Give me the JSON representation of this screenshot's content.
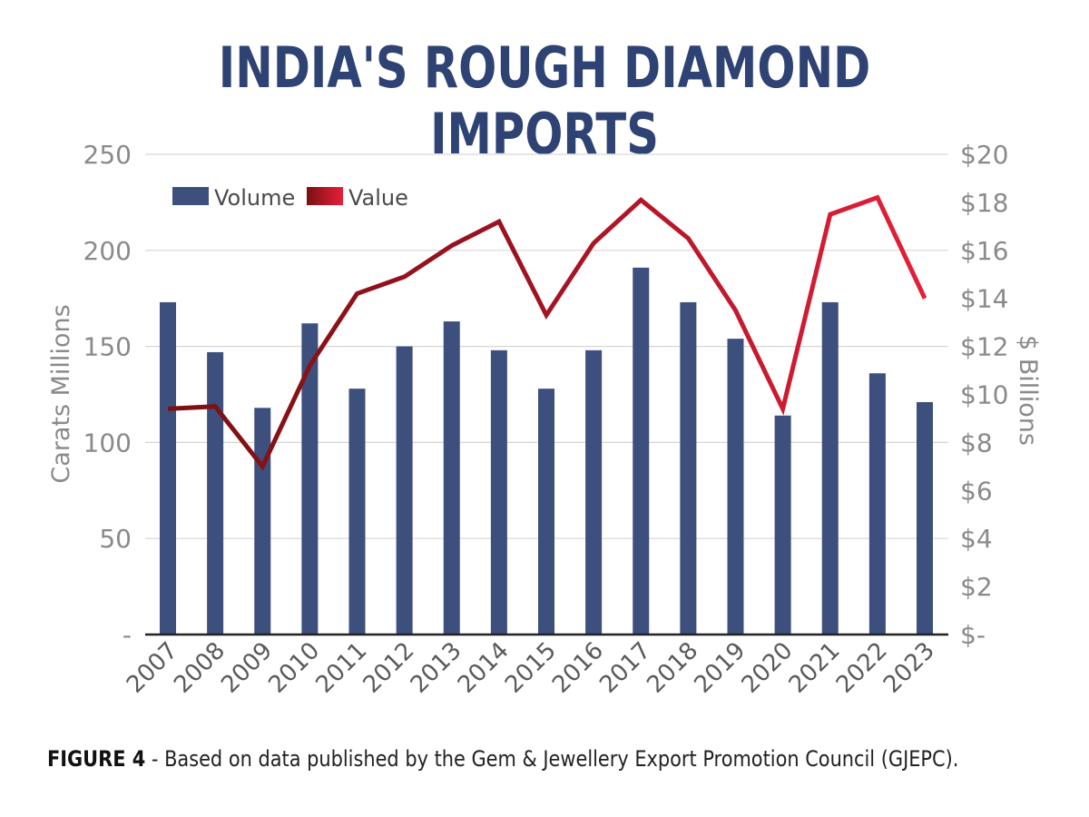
{
  "chart_data": {
    "type": "bar",
    "title": "INDIA'S ROUGH DIAMOND IMPORTS",
    "caption": {
      "label": "FIGURE 4",
      "text": " - Based on data published by the Gem & Jewellery Export Promotion Council (GJEPC)."
    },
    "categories": [
      "2007",
      "2008",
      "2009",
      "2010",
      "2011",
      "2012",
      "2013",
      "2014",
      "2015",
      "2016",
      "2017",
      "2018",
      "2019",
      "2020",
      "2021",
      "2022",
      "2023"
    ],
    "series": [
      {
        "name": "Volume",
        "type": "bar",
        "axis": "left",
        "color": "#3d4f7d",
        "values": [
          173,
          147,
          118,
          162,
          128,
          150,
          163,
          148,
          128,
          148,
          191,
          173,
          154,
          114,
          173,
          136,
          121
        ]
      },
      {
        "name": "Value",
        "type": "line",
        "axis": "right",
        "color_start": "#7a1010",
        "color_end": "#e8203a",
        "values": [
          9.4,
          9.5,
          7.0,
          11.2,
          14.2,
          14.9,
          16.2,
          17.2,
          13.3,
          16.3,
          18.1,
          16.5,
          13.5,
          9.4,
          17.5,
          18.2,
          14.0
        ]
      }
    ],
    "left_axis": {
      "label": "Carats Millions",
      "ylim": [
        0,
        250
      ],
      "ticks": [
        {
          "value": 0,
          "label": "-"
        },
        {
          "value": 50,
          "label": "50"
        },
        {
          "value": 100,
          "label": "100"
        },
        {
          "value": 150,
          "label": "150"
        },
        {
          "value": 200,
          "label": "200"
        },
        {
          "value": 250,
          "label": "250"
        }
      ]
    },
    "right_axis": {
      "label": "$ Billions",
      "ylim": [
        0,
        20
      ],
      "ticks": [
        {
          "value": 0,
          "label": "$-"
        },
        {
          "value": 2,
          "label": "$2"
        },
        {
          "value": 4,
          "label": "$4"
        },
        {
          "value": 6,
          "label": "$6"
        },
        {
          "value": 8,
          "label": "$8"
        },
        {
          "value": 10,
          "label": "$10"
        },
        {
          "value": 12,
          "label": "$12"
        },
        {
          "value": 14,
          "label": "$14"
        },
        {
          "value": 16,
          "label": "$16"
        },
        {
          "value": 18,
          "label": "$18"
        },
        {
          "value": 20,
          "label": "$20"
        }
      ]
    },
    "gridlines": [
      50,
      100,
      150,
      200,
      250
    ],
    "legend": {
      "placement": "top-left",
      "entries": [
        "Volume",
        "Value"
      ]
    }
  }
}
